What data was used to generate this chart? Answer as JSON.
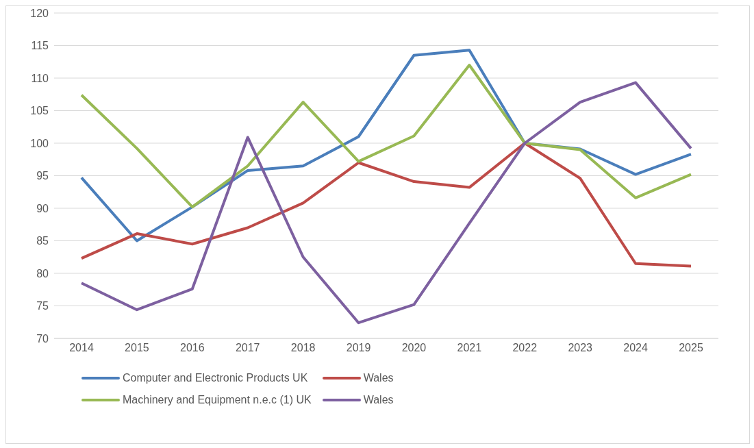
{
  "chart_data": {
    "type": "line",
    "categories": [
      "2014",
      "2015",
      "2016",
      "2017",
      "2018",
      "2019",
      "2020",
      "2021",
      "2022",
      "2023",
      "2024",
      "2025"
    ],
    "series": [
      {
        "name": "Computer and Electronic Products UK",
        "color": "#4a7ebb",
        "values": [
          94.7,
          85,
          90.2,
          95.8,
          96.5,
          101,
          113.5,
          114.3,
          100,
          99.1,
          95.2,
          98.3
        ]
      },
      {
        "name": "Wales",
        "color": "#be4b48",
        "values": [
          82.3,
          86.1,
          84.5,
          87,
          90.8,
          97,
          94.1,
          93.2,
          100,
          94.6,
          81.5,
          81.1
        ]
      },
      {
        "name": "Machinery and Equipment n.e.c (1) UK",
        "color": "#98b954",
        "values": [
          107.4,
          99.2,
          90.2,
          96.5,
          106.3,
          97.2,
          101.1,
          112,
          100,
          99,
          91.6,
          95.2
        ]
      },
      {
        "name": "Wales",
        "color": "#7d60a0",
        "values": [
          78.5,
          74.4,
          77.6,
          100.9,
          82.5,
          72.4,
          75.2,
          87.7,
          100,
          106.3,
          109.3,
          99.2
        ]
      }
    ],
    "ylim": [
      70,
      120
    ],
    "yticks": [
      70,
      75,
      80,
      85,
      90,
      95,
      100,
      105,
      110,
      115,
      120
    ],
    "grid": "y",
    "legend": "bottom",
    "marker": "none",
    "line_style": "solid"
  }
}
